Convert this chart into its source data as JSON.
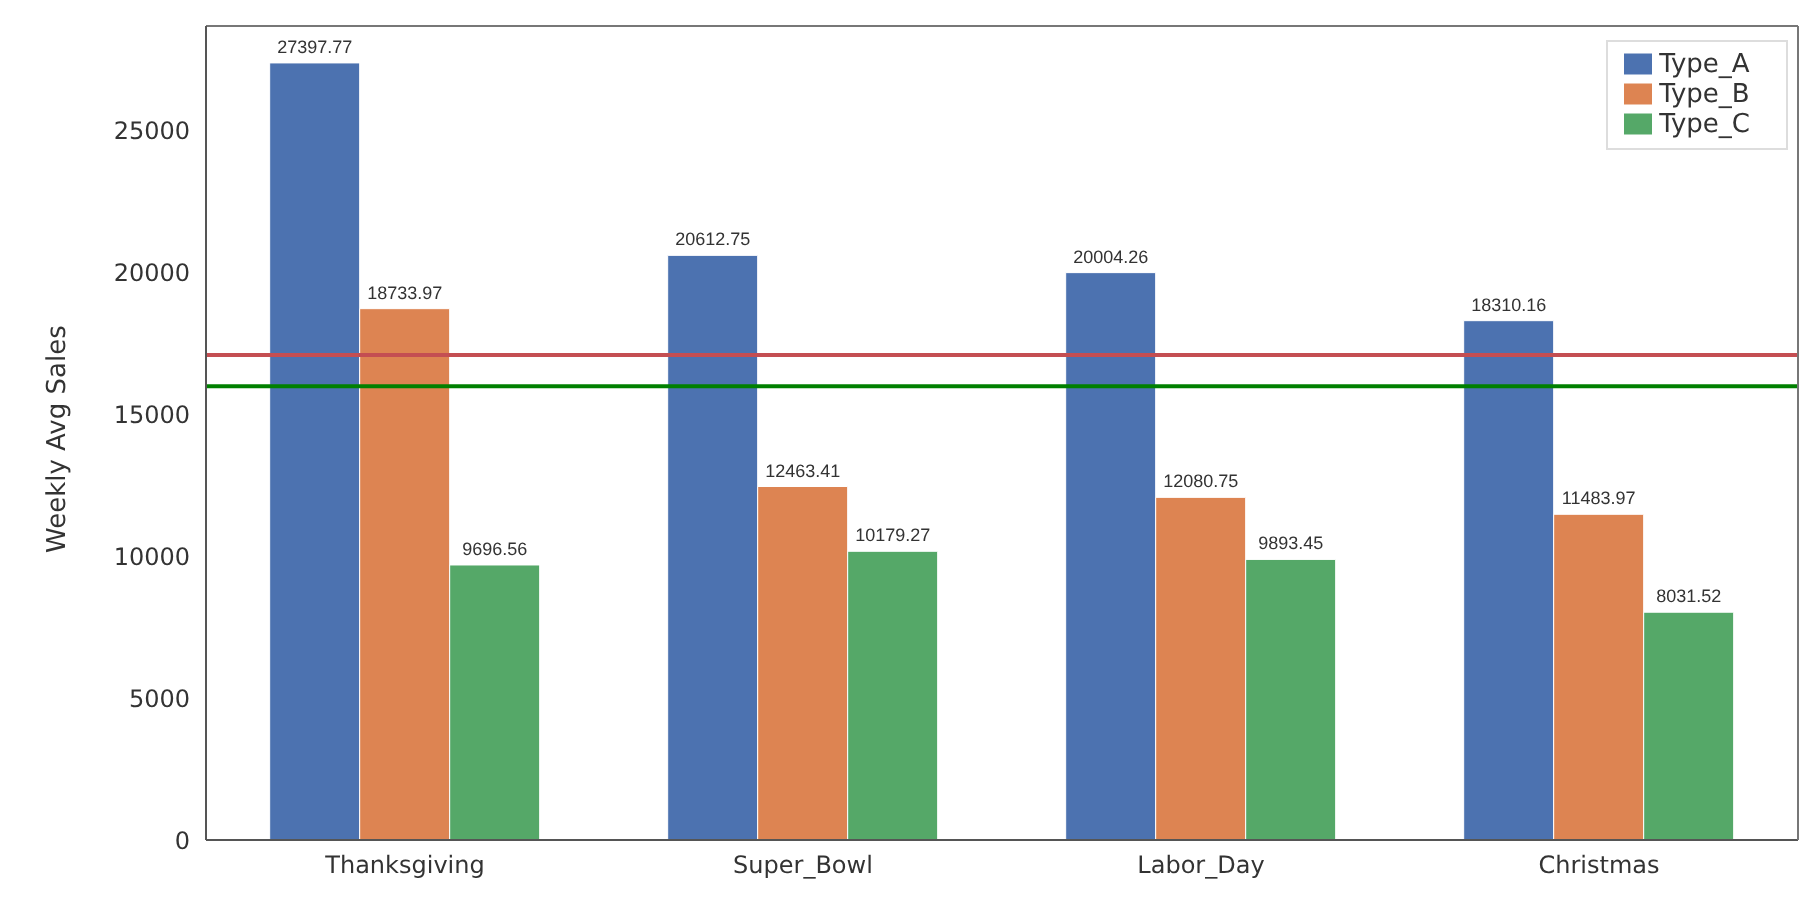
{
  "chart_data": {
    "type": "bar",
    "ylabel": "Weekly Avg Sales",
    "categories": [
      "Thanksgiving",
      "Super_Bowl",
      "Labor_Day",
      "Christmas"
    ],
    "series": [
      {
        "name": "Type_A",
        "color": "#4c72b0",
        "values": [
          27397.77,
          20612.75,
          20004.26,
          18310.16
        ]
      },
      {
        "name": "Type_B",
        "color": "#dd8452",
        "values": [
          18733.97,
          12463.41,
          12080.75,
          11483.97
        ]
      },
      {
        "name": "Type_C",
        "color": "#55a868",
        "values": [
          9696.56,
          10179.27,
          9893.45,
          8031.52
        ]
      }
    ],
    "ylim": [
      0,
      28700
    ],
    "yticks": [
      0,
      5000,
      10000,
      15000,
      20000,
      25000
    ],
    "grid": false,
    "legend": "top right",
    "data_labels": true,
    "ref_lines": [
      {
        "axis": "y",
        "value": 17100,
        "color": "#c44e52"
      },
      {
        "axis": "y",
        "value": 16000,
        "color": "#008000"
      }
    ]
  }
}
